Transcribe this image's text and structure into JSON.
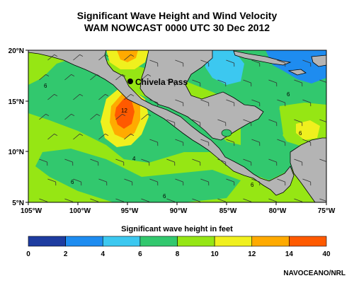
{
  "title": {
    "line1": "Significant Wave Height and Wind Velocity",
    "line2": "WAM NOWCAST 0000 UTC 30 Dec 2012"
  },
  "map": {
    "lat_labels": [
      "20°N",
      "15°N",
      "10°N",
      "5°N"
    ],
    "lon_labels": [
      "105°W",
      "100°W",
      "95°W",
      "90°W",
      "85°W",
      "80°W",
      "75°W"
    ],
    "extent": {
      "lon": [
        -105,
        -75
      ],
      "lat": [
        5,
        20
      ]
    },
    "marker": {
      "label": "Chivela Pass",
      "lon": -95.2,
      "lat": 16.8
    },
    "contour_labels": [
      "6",
      "12",
      "4",
      "6",
      "6",
      "6",
      "6",
      "6"
    ],
    "land_color": "#b4b4b4"
  },
  "colorbar": {
    "title": "Significant wave height in feet",
    "ticks": [
      "0",
      "2",
      "4",
      "6",
      "8",
      "10",
      "12",
      "14",
      "40"
    ],
    "colors": [
      "#1e3ca0",
      "#1e8cf0",
      "#3cc8f0",
      "#32c86e",
      "#96e614",
      "#f0f01e",
      "#ffaa00",
      "#ff5a00",
      "#ff1414"
    ]
  },
  "credit": "NAVOCEANO/NRL"
}
